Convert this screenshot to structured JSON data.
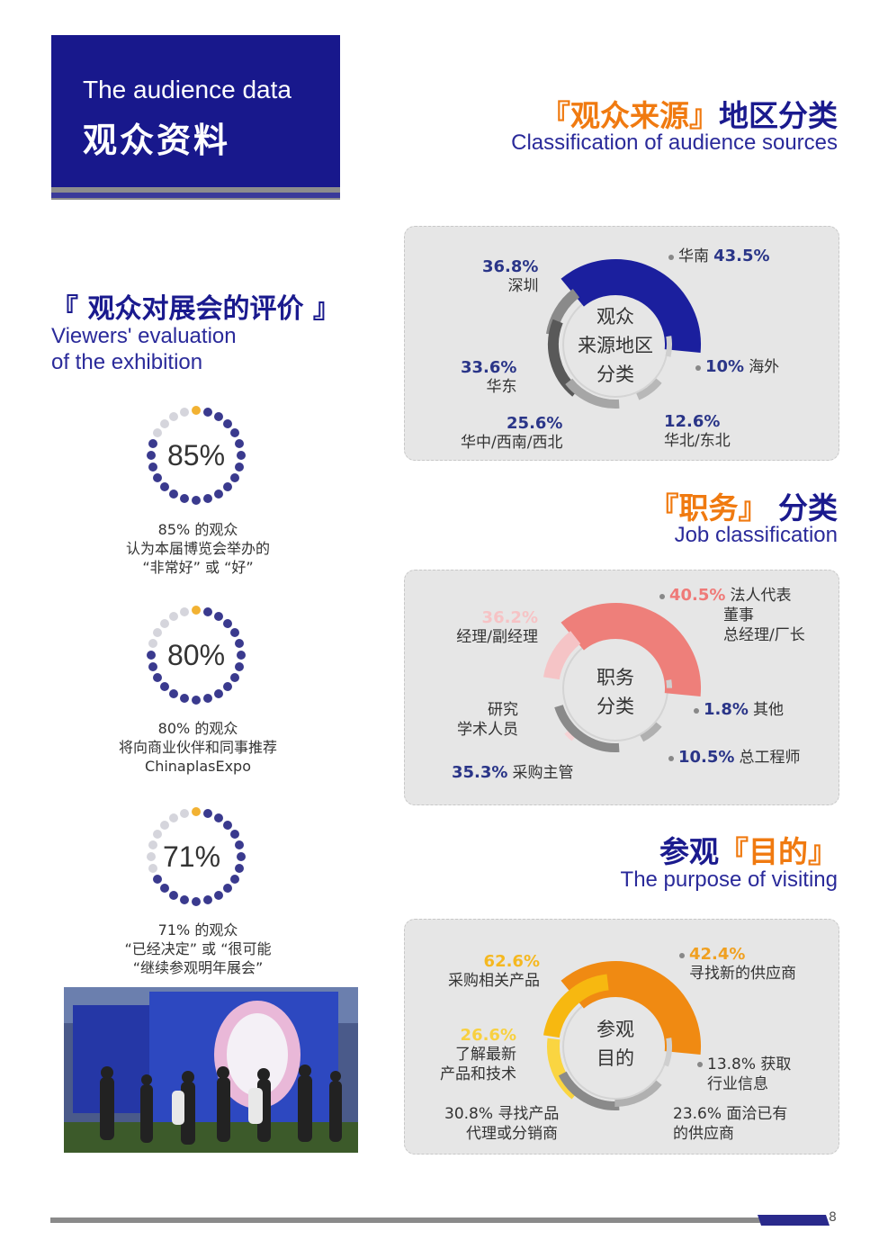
{
  "header": {
    "en": "The audience data",
    "cn": "观众资料"
  },
  "sections": {
    "sources": {
      "open": "『",
      "title_hl": "观众来源",
      "close": "』",
      "title_rest": "地区分类",
      "en": "Classification of audience sources"
    },
    "jobs": {
      "open": "『",
      "title_hl": "职务",
      "close": "』",
      "title_rest": "分类",
      "en": "Job classification"
    },
    "purpose": {
      "title_pre": "参观",
      "open": "『",
      "title_hl": "目的",
      "close": "』",
      "en": "The purpose of visiting"
    },
    "evaluation": {
      "title": "『 观众对展会的评价 』",
      "en_line1": "Viewers' evaluation",
      "en_line2": "of the exhibition"
    }
  },
  "ratings": [
    {
      "value": "85%",
      "fraction": 0.85,
      "lines": [
        "85% 的观众",
        "认为本届博览会举办的",
        "“非常好” 或 “好”"
      ]
    },
    {
      "value": "80%",
      "fraction": 0.8,
      "lines": [
        "80% 的观众",
        "将向商业伙伴和同事推荐",
        "ChinaplasExpo"
      ]
    },
    {
      "value": "71%",
      "fraction": 0.71,
      "lines": [
        "71% 的观众",
        "“已经决定” 或 “很可能",
        "“继续参观明年展会”"
      ]
    }
  ],
  "chart_data": [
    {
      "type": "pie",
      "center_lines": [
        "观众",
        "来源地区",
        "分类"
      ],
      "slices": [
        {
          "label": "华南",
          "value": 43.5,
          "pct_text": "43.5%",
          "color": "#1b1f9e"
        },
        {
          "label": "深圳",
          "value": 36.8,
          "pct_text": "36.8%",
          "color": "#8a8a8a"
        },
        {
          "label": "华东",
          "value": 33.6,
          "pct_text": "33.6%",
          "color": "#595959"
        },
        {
          "label": "华中/西南/西北",
          "value": 25.6,
          "pct_text": "25.6%",
          "color": "#a6a6a6"
        },
        {
          "label": "华北/东北",
          "value": 12.6,
          "pct_text": "12.6%",
          "color": "#b8b8b8"
        },
        {
          "label": "海外",
          "value": 10,
          "pct_text": "10%",
          "color": "#cfcfcf"
        }
      ]
    },
    {
      "type": "pie",
      "center_lines": [
        "职务",
        "分类"
      ],
      "slices": [
        {
          "label": "法人代表 董事 总经理/厂长",
          "value": 40.5,
          "pct_text": "40.5%",
          "color": "#ee7f7a"
        },
        {
          "label": "经理/副经理",
          "value": 36.2,
          "pct_text": "36.2%",
          "color": "#f5c4c6"
        },
        {
          "label": "研究 学术人员",
          "value": 0,
          "pct_text": "",
          "color": "#f6d3d5"
        },
        {
          "label": "采购主管",
          "value": 35.3,
          "pct_text": "35.3%",
          "color": "#8a8a8a"
        },
        {
          "label": "总工程师",
          "value": 10.5,
          "pct_text": "10.5%",
          "color": "#b0b0b0"
        },
        {
          "label": "其他",
          "value": 1.8,
          "pct_text": "1.8%",
          "color": "#cfcfcf"
        }
      ]
    },
    {
      "type": "pie",
      "center_lines": [
        "参观",
        "目的"
      ],
      "slices": [
        {
          "label": "寻找新的供应商",
          "value": 42.4,
          "pct_text": "42.4%",
          "color": "#f08a12"
        },
        {
          "label": "采购相关产品",
          "value": 62.6,
          "pct_text": "62.6%",
          "color": "#f7b810"
        },
        {
          "label": "了解最新 产品和技术",
          "value": 26.6,
          "pct_text": "26.6%",
          "color": "#fad541"
        },
        {
          "label": "寻找产品 代理或分销商",
          "value": 30.8,
          "pct_text": "30.8%",
          "color": "#8a8a8a"
        },
        {
          "label": "面洽已有 的供应商",
          "value": 23.6,
          "pct_text": "23.6%",
          "color": "#b0b0b0"
        },
        {
          "label": "获取 行业信息",
          "value": 13.8,
          "pct_text": "13.8%",
          "color": "#cfcfcf"
        }
      ]
    }
  ],
  "page_number": "8",
  "colors": {
    "brand_blue": "#18188c",
    "accent_orange": "#f07a10"
  }
}
